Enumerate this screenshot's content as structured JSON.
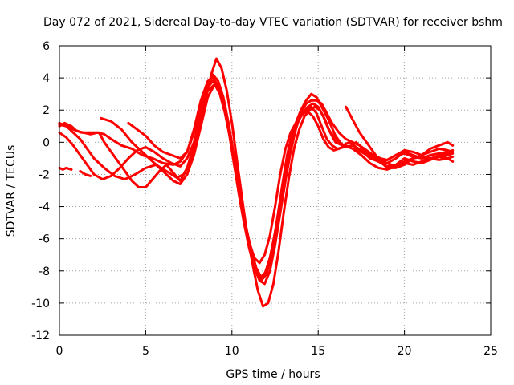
{
  "chart_data": {
    "type": "line",
    "title": "Day 072 of 2021, Sidereal Day-to-day VTEC variation (SDTVAR) for receiver bshm",
    "xlabel": "GPS time / hours",
    "ylabel": "SDTVAR / TECUs",
    "xlim": [
      0,
      25
    ],
    "ylim": [
      -12,
      6
    ],
    "xticks": [
      0,
      5,
      10,
      15,
      20,
      25
    ],
    "yticks": [
      -12,
      -10,
      -8,
      -6,
      -4,
      -2,
      0,
      2,
      4,
      6
    ],
    "grid": true,
    "color": "#ff0000",
    "series": [
      {
        "name": "track-1",
        "x": [
          0.0,
          0.3,
          0.7,
          1.0,
          1.4,
          1.8,
          2.2,
          2.6,
          3.0,
          3.6,
          4.2,
          4.8,
          5.4,
          6.0,
          6.6,
          7.0,
          7.4,
          7.8,
          8.2,
          8.6,
          8.9,
          9.2,
          9.5,
          9.8,
          10.1,
          10.4,
          10.7,
          11.0,
          11.3,
          11.6,
          11.9,
          12.2,
          12.5,
          12.8,
          13.1,
          13.4,
          13.7,
          14.0,
          14.3,
          14.6,
          14.9,
          15.2,
          15.5,
          15.8,
          16.1,
          16.5,
          17.0,
          17.5,
          18.0,
          18.5,
          19.0,
          19.5,
          20.0,
          20.5,
          21.0,
          21.5,
          22.0,
          22.5,
          22.8
        ],
        "y": [
          1.0,
          1.2,
          1.0,
          0.7,
          0.6,
          0.5,
          0.6,
          0.5,
          0.2,
          -0.2,
          -0.4,
          -0.8,
          -1.0,
          -1.3,
          -1.4,
          -1.2,
          -0.6,
          0.8,
          2.6,
          3.8,
          4.0,
          3.5,
          2.5,
          1.0,
          -1.0,
          -3.0,
          -4.8,
          -6.2,
          -7.2,
          -7.5,
          -7.0,
          -5.8,
          -4.0,
          -2.0,
          -0.4,
          0.6,
          1.2,
          1.6,
          2.0,
          2.2,
          1.8,
          1.0,
          0.2,
          -0.2,
          -0.4,
          -0.3,
          -0.2,
          -0.5,
          -0.7,
          -1.0,
          -1.3,
          -1.5,
          -1.2,
          -1.0,
          -0.9,
          -1.0,
          -0.9,
          -0.8,
          -0.7
        ]
      },
      {
        "name": "track-2",
        "x": [
          0.0,
          0.4,
          0.8,
          1.2,
          1.6,
          2.0,
          2.5,
          3.0,
          3.5,
          4.0,
          4.5,
          5.0,
          5.5,
          6.0,
          6.5,
          7.0,
          7.4,
          7.8,
          8.2,
          8.6,
          9.0,
          9.3,
          9.6,
          9.9,
          10.2,
          10.5,
          10.8,
          11.1,
          11.4,
          11.7,
          12.0,
          12.3,
          12.6,
          12.9,
          13.2,
          13.5,
          13.8,
          14.1,
          14.4,
          14.7,
          15.0,
          15.3,
          15.6,
          15.9,
          16.2,
          16.6,
          17.0,
          17.5,
          18.0,
          18.5,
          19.0,
          19.5,
          20.0,
          20.5,
          21.0,
          21.5,
          22.0,
          22.5,
          22.8
        ],
        "y": [
          0.6,
          0.3,
          -0.2,
          -0.8,
          -1.4,
          -2.0,
          -2.3,
          -2.1,
          -1.6,
          -1.0,
          -0.5,
          -0.3,
          -0.6,
          -1.0,
          -1.3,
          -1.5,
          -1.0,
          0.0,
          1.8,
          3.2,
          3.6,
          3.0,
          1.8,
          0.2,
          -1.8,
          -3.6,
          -5.2,
          -6.8,
          -8.0,
          -8.6,
          -8.2,
          -7.0,
          -5.0,
          -2.8,
          -0.8,
          0.6,
          1.4,
          1.8,
          1.9,
          1.6,
          1.0,
          0.2,
          -0.3,
          -0.5,
          -0.4,
          -0.2,
          -0.4,
          -0.8,
          -1.3,
          -1.6,
          -1.7,
          -1.5,
          -1.3,
          -1.4,
          -1.2,
          -1.0,
          -1.1,
          -1.0,
          -0.9
        ]
      },
      {
        "name": "track-3",
        "x": [
          0.0,
          0.4,
          0.8,
          1.2,
          1.6,
          2.0,
          2.6,
          3.2,
          3.8,
          4.4,
          5.0,
          5.6,
          6.2,
          6.8,
          7.2,
          7.6,
          8.0,
          8.4,
          8.8,
          9.1,
          9.4,
          9.7,
          10.0,
          10.3,
          10.6,
          10.9,
          11.2,
          11.5,
          11.8,
          12.1,
          12.4,
          12.7,
          13.0,
          13.3,
          13.6,
          13.9,
          14.2,
          14.5,
          14.8,
          15.1,
          15.4,
          15.7,
          16.0,
          16.4,
          16.8,
          17.2,
          17.6,
          18.0,
          18.5,
          19.0,
          19.5,
          20.0,
          20.5,
          21.0,
          21.5,
          22.0,
          22.5,
          22.8
        ],
        "y": [
          1.1,
          1.0,
          0.6,
          0.2,
          -0.4,
          -1.0,
          -1.6,
          -2.1,
          -2.3,
          -2.0,
          -1.6,
          -1.4,
          -1.8,
          -2.2,
          -2.0,
          -1.2,
          0.3,
          2.4,
          4.2,
          5.2,
          4.6,
          3.2,
          1.2,
          -1.2,
          -3.6,
          -5.8,
          -7.6,
          -9.2,
          -10.2,
          -10.0,
          -8.8,
          -6.8,
          -4.4,
          -2.2,
          -0.4,
          0.8,
          1.6,
          2.0,
          2.2,
          2.0,
          1.4,
          0.6,
          0.0,
          -0.2,
          0.0,
          -0.3,
          -0.6,
          -1.0,
          -1.2,
          -1.1,
          -0.8,
          -0.7,
          -0.9,
          -1.0,
          -0.8,
          -0.7,
          -0.6,
          -0.5
        ]
      },
      {
        "name": "track-4",
        "x": [
          0.0,
          0.4,
          0.8,
          1.3,
          1.8,
          2.3,
          2.6,
          3.0,
          3.4,
          3.8,
          4.2,
          4.6,
          5.0,
          5.4,
          5.8,
          6.2,
          6.6,
          7.0,
          7.4,
          7.8,
          8.2,
          8.6,
          8.9,
          9.2,
          9.5,
          9.8,
          10.1,
          10.4,
          10.7,
          11.0,
          11.3,
          11.6,
          11.9,
          12.2,
          12.5,
          12.8,
          13.1,
          13.4,
          13.7,
          14.0,
          14.3,
          14.6,
          14.9,
          15.2,
          15.6,
          16.0,
          16.4,
          16.8,
          17.2,
          17.6,
          18.0,
          18.5,
          19.0,
          19.5,
          20.0,
          20.5,
          21.0,
          21.5,
          22.0,
          22.5,
          22.8
        ],
        "y": [
          1.2,
          1.0,
          0.8,
          0.6,
          0.6,
          0.6,
          0.0,
          -0.6,
          -1.2,
          -1.8,
          -2.4,
          -2.8,
          -2.8,
          -2.3,
          -1.8,
          -1.4,
          -1.9,
          -2.4,
          -1.6,
          -0.2,
          1.6,
          3.4,
          4.2,
          3.8,
          2.8,
          1.2,
          -1.0,
          -3.2,
          -5.0,
          -6.4,
          -7.6,
          -8.4,
          -8.2,
          -7.2,
          -5.6,
          -3.6,
          -1.6,
          0.0,
          1.2,
          2.0,
          2.6,
          3.0,
          2.8,
          2.2,
          1.4,
          0.4,
          -0.2,
          -0.3,
          0.0,
          -0.4,
          -0.8,
          -1.2,
          -1.5,
          -1.4,
          -1.0,
          -1.2,
          -1.3,
          -1.1,
          -0.8,
          -0.7,
          -0.6
        ]
      },
      {
        "name": "track-5",
        "x": [
          2.4,
          3.0,
          3.6,
          4.2,
          4.8,
          5.4,
          6.0,
          6.6,
          7.0,
          7.4,
          7.8,
          8.2,
          8.6,
          9.0,
          9.3,
          9.6,
          9.9,
          10.2,
          10.5,
          10.8,
          11.1,
          11.4,
          11.7,
          12.0,
          12.3,
          12.6,
          12.9,
          13.2,
          13.5,
          13.8,
          14.1,
          14.4,
          14.7,
          15.0,
          15.3,
          15.6,
          16.0,
          16.5,
          17.0,
          17.5,
          18.0,
          18.5,
          19.0,
          19.5,
          20.0,
          20.5,
          21.0,
          21.5,
          22.0,
          22.5,
          22.8
        ],
        "y": [
          1.5,
          1.3,
          0.8,
          0.0,
          -0.6,
          -1.2,
          -1.8,
          -2.4,
          -2.6,
          -2.0,
          -0.8,
          1.0,
          2.8,
          3.6,
          3.2,
          2.2,
          0.6,
          -1.4,
          -3.4,
          -5.2,
          -6.6,
          -7.8,
          -8.4,
          -8.0,
          -6.8,
          -5.0,
          -3.0,
          -1.2,
          0.2,
          1.2,
          1.8,
          2.2,
          2.4,
          2.2,
          1.6,
          0.8,
          0.2,
          -0.2,
          -0.4,
          -0.6,
          -0.9,
          -1.2,
          -1.3,
          -1.0,
          -0.6,
          -0.8,
          -1.0,
          -1.0,
          -0.9,
          -1.0,
          -1.2
        ]
      },
      {
        "name": "track-6",
        "x": [
          4.0,
          4.5,
          5.0,
          5.5,
          6.0,
          6.5,
          7.0,
          7.4,
          7.8,
          8.2,
          8.6,
          8.9,
          9.2,
          9.5,
          9.8,
          10.1,
          10.4,
          10.7,
          11.0,
          11.3,
          11.6,
          11.9,
          12.2,
          12.5,
          12.8,
          13.1,
          13.4,
          13.7,
          14.0,
          14.3,
          14.6,
          14.9,
          15.2,
          15.5,
          15.8,
          16.2,
          16.6,
          17.0,
          17.4,
          17.8,
          18.2,
          18.6,
          19.0,
          19.5,
          20.0,
          20.5,
          21.0,
          21.5,
          22.0,
          22.5,
          22.8
        ],
        "y": [
          1.2,
          0.8,
          0.4,
          -0.2,
          -0.6,
          -0.8,
          -1.0,
          -0.6,
          0.6,
          2.2,
          3.4,
          3.8,
          3.4,
          2.4,
          0.8,
          -1.2,
          -3.2,
          -5.0,
          -6.6,
          -7.8,
          -8.6,
          -8.8,
          -8.0,
          -6.4,
          -4.4,
          -2.4,
          -0.6,
          0.8,
          1.8,
          2.4,
          2.6,
          2.6,
          2.4,
          1.8,
          1.2,
          0.6,
          0.2,
          0.0,
          -0.2,
          -0.5,
          -0.8,
          -1.0,
          -1.1,
          -0.8,
          -0.5,
          -0.6,
          -0.8,
          -0.6,
          -0.4,
          -0.5,
          -0.6
        ]
      },
      {
        "name": "track-7",
        "x": [
          16.6,
          17.0,
          17.4,
          17.8,
          18.2,
          18.6,
          19.0,
          19.5,
          20.0,
          20.5,
          21.0,
          21.5,
          22.0,
          22.5,
          22.8
        ],
        "y": [
          2.2,
          1.4,
          0.6,
          0.0,
          -0.6,
          -1.2,
          -1.6,
          -1.6,
          -1.4,
          -1.0,
          -0.8,
          -0.4,
          -0.2,
          0.0,
          -0.2
        ]
      },
      {
        "name": "track-8",
        "x": [
          0.0,
          0.2,
          0.4,
          0.7
        ],
        "y": [
          -1.6,
          -1.7,
          -1.6,
          -1.7
        ]
      },
      {
        "name": "track-9",
        "x": [
          1.2,
          1.5,
          1.8
        ],
        "y": [
          -1.8,
          -2.0,
          -2.1
        ]
      }
    ]
  }
}
